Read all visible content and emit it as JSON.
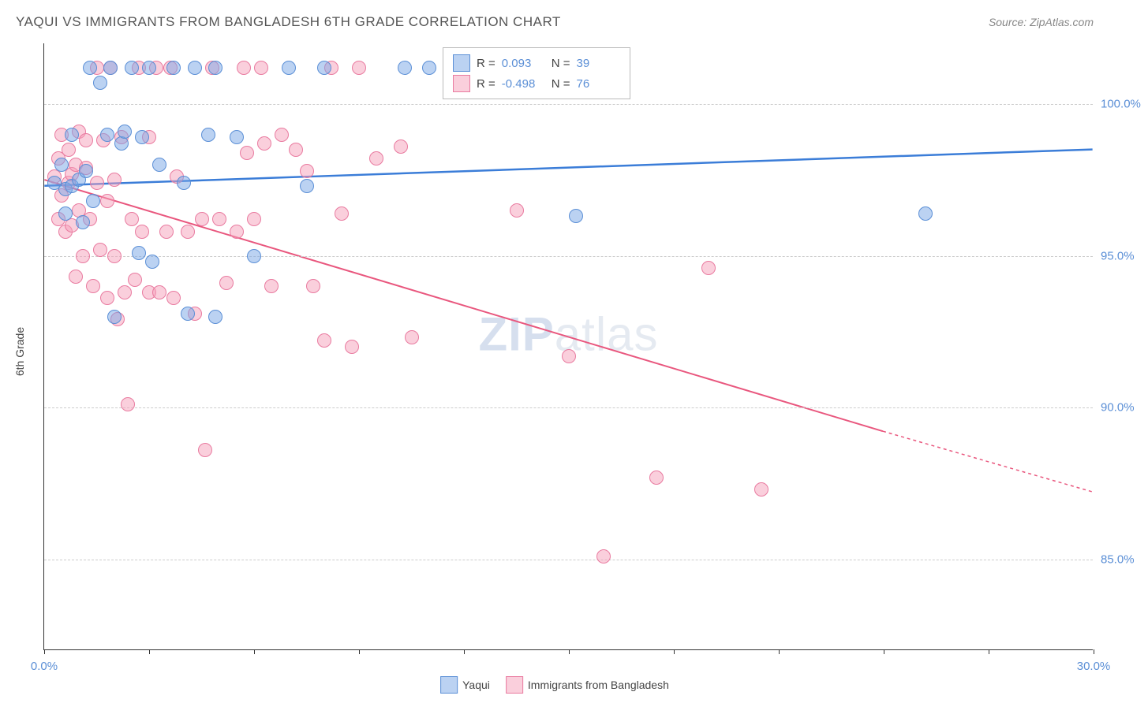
{
  "title": "YAQUI VS IMMIGRANTS FROM BANGLADESH 6TH GRADE CORRELATION CHART",
  "source": "Source: ZipAtlas.com",
  "watermark_a": "ZIP",
  "watermark_b": "atlas",
  "y_axis_title": "6th Grade",
  "chart": {
    "type": "scatter",
    "xlim": [
      0,
      30
    ],
    "ylim": [
      82,
      102
    ],
    "x_ticks": [
      0,
      3,
      6,
      9,
      12,
      15,
      18,
      21,
      24,
      27,
      30
    ],
    "x_tick_labels": {
      "0": "0.0%",
      "30": "30.0%"
    },
    "y_ticks": [
      85,
      90,
      95,
      100
    ],
    "y_tick_labels": {
      "85": "85.0%",
      "90": "90.0%",
      "95": "95.0%",
      "100": "100.0%"
    },
    "background_color": "#ffffff",
    "grid_color": "#cccccc",
    "axis_color": "#333333",
    "tick_label_color": "#5b8fd6",
    "point_radius": 9,
    "series": [
      {
        "name": "Yaqui",
        "fill": "rgba(120, 165, 230, 0.5)",
        "stroke": "#5b8fd6",
        "line_color": "#3b7dd8",
        "line_width": 2.5,
        "r_label": "R = ",
        "r_value": "0.093",
        "n_label": "N = ",
        "n_value": "39",
        "trend": {
          "x1": 0,
          "y1": 97.3,
          "x2": 30,
          "y2": 98.5
        },
        "points": [
          [
            0.3,
            97.4
          ],
          [
            0.5,
            98.0
          ],
          [
            0.6,
            96.4
          ],
          [
            0.6,
            97.2
          ],
          [
            0.8,
            97.3
          ],
          [
            0.8,
            99.0
          ],
          [
            1.0,
            97.5
          ],
          [
            1.1,
            96.1
          ],
          [
            1.2,
            97.8
          ],
          [
            1.3,
            101.2
          ],
          [
            1.4,
            96.8
          ],
          [
            1.6,
            100.7
          ],
          [
            1.8,
            99.0
          ],
          [
            1.9,
            101.2
          ],
          [
            2.0,
            93.0
          ],
          [
            2.2,
            98.7
          ],
          [
            2.3,
            99.1
          ],
          [
            2.5,
            101.2
          ],
          [
            2.7,
            95.1
          ],
          [
            2.8,
            98.9
          ],
          [
            3.0,
            101.2
          ],
          [
            3.1,
            94.8
          ],
          [
            3.3,
            98.0
          ],
          [
            3.7,
            101.2
          ],
          [
            4.0,
            97.4
          ],
          [
            4.1,
            93.1
          ],
          [
            4.3,
            101.2
          ],
          [
            4.7,
            99.0
          ],
          [
            4.9,
            93.0
          ],
          [
            4.9,
            101.2
          ],
          [
            5.5,
            98.9
          ],
          [
            6.0,
            95.0
          ],
          [
            7.0,
            101.2
          ],
          [
            7.5,
            97.3
          ],
          [
            8.0,
            101.2
          ],
          [
            10.3,
            101.2
          ],
          [
            11.0,
            101.2
          ],
          [
            15.2,
            96.3
          ],
          [
            25.2,
            96.4
          ]
        ]
      },
      {
        "name": "Immigrants from Bangladesh",
        "fill": "rgba(245, 160, 185, 0.5)",
        "stroke": "#e97ba0",
        "line_color": "#e9577e",
        "line_width": 2,
        "r_label": "R = ",
        "r_value": "-0.498",
        "n_label": "N = ",
        "n_value": "76",
        "trend": {
          "x1": 0,
          "y1": 97.5,
          "x2": 24,
          "y2": 89.2
        },
        "trend_dash": {
          "x1": 24,
          "y1": 89.2,
          "x2": 30,
          "y2": 87.2
        },
        "points": [
          [
            0.3,
            97.6
          ],
          [
            0.4,
            98.2
          ],
          [
            0.4,
            96.2
          ],
          [
            0.5,
            97.0
          ],
          [
            0.5,
            99.0
          ],
          [
            0.6,
            95.8
          ],
          [
            0.7,
            97.4
          ],
          [
            0.7,
            98.5
          ],
          [
            0.8,
            96.0
          ],
          [
            0.8,
            97.7
          ],
          [
            0.9,
            94.3
          ],
          [
            0.9,
            98.0
          ],
          [
            1.0,
            96.5
          ],
          [
            1.0,
            99.1
          ],
          [
            1.1,
            95.0
          ],
          [
            1.2,
            97.9
          ],
          [
            1.2,
            98.8
          ],
          [
            1.3,
            96.2
          ],
          [
            1.4,
            94.0
          ],
          [
            1.5,
            97.4
          ],
          [
            1.5,
            101.2
          ],
          [
            1.6,
            95.2
          ],
          [
            1.7,
            98.8
          ],
          [
            1.8,
            93.6
          ],
          [
            1.8,
            96.8
          ],
          [
            1.9,
            101.2
          ],
          [
            2.0,
            95.0
          ],
          [
            2.0,
            97.5
          ],
          [
            2.1,
            92.9
          ],
          [
            2.2,
            98.9
          ],
          [
            2.3,
            93.8
          ],
          [
            2.4,
            90.1
          ],
          [
            2.5,
            96.2
          ],
          [
            2.6,
            94.2
          ],
          [
            2.7,
            101.2
          ],
          [
            2.8,
            95.8
          ],
          [
            3.0,
            93.8
          ],
          [
            3.0,
            98.9
          ],
          [
            3.2,
            101.2
          ],
          [
            3.3,
            93.8
          ],
          [
            3.5,
            95.8
          ],
          [
            3.6,
            101.2
          ],
          [
            3.7,
            93.6
          ],
          [
            3.8,
            97.6
          ],
          [
            4.1,
            95.8
          ],
          [
            4.3,
            93.1
          ],
          [
            4.5,
            96.2
          ],
          [
            4.6,
            88.6
          ],
          [
            4.8,
            101.2
          ],
          [
            5.0,
            96.2
          ],
          [
            5.2,
            94.1
          ],
          [
            5.5,
            95.8
          ],
          [
            5.7,
            101.2
          ],
          [
            5.8,
            98.4
          ],
          [
            6.0,
            96.2
          ],
          [
            6.2,
            101.2
          ],
          [
            6.3,
            98.7
          ],
          [
            6.5,
            94.0
          ],
          [
            6.8,
            99.0
          ],
          [
            7.2,
            98.5
          ],
          [
            7.5,
            97.8
          ],
          [
            7.7,
            94.0
          ],
          [
            8.0,
            92.2
          ],
          [
            8.2,
            101.2
          ],
          [
            8.5,
            96.4
          ],
          [
            8.8,
            92.0
          ],
          [
            9.0,
            101.2
          ],
          [
            9.5,
            98.2
          ],
          [
            10.2,
            98.6
          ],
          [
            10.5,
            92.3
          ],
          [
            13.5,
            96.5
          ],
          [
            15.0,
            91.7
          ],
          [
            16.0,
            85.1
          ],
          [
            17.5,
            87.7
          ],
          [
            19.0,
            94.6
          ],
          [
            20.5,
            87.3
          ]
        ]
      }
    ]
  },
  "legend_box": {
    "box_fill_1": "rgba(120, 165, 230, 0.5)",
    "box_stroke_1": "#5b8fd6",
    "box_fill_2": "rgba(245, 160, 185, 0.5)",
    "box_stroke_2": "#e97ba0"
  }
}
